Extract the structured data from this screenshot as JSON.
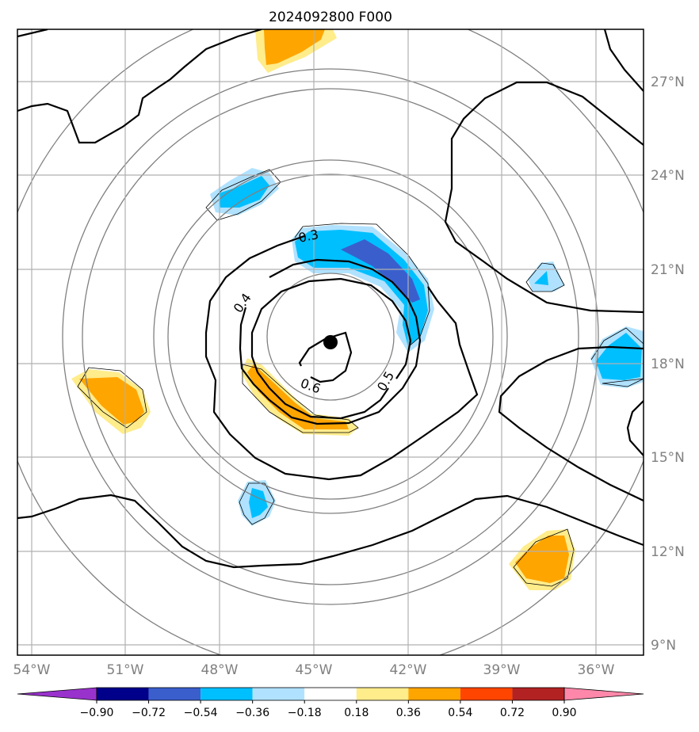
{
  "title": "2024092800 F000",
  "map": {
    "lon_ticks": [
      "54°W",
      "51°W",
      "48°W",
      "45°W",
      "42°W",
      "39°W",
      "36°W"
    ],
    "lat_ticks": [
      "27°N",
      "24°N",
      "21°N",
      "18°N",
      "15°N",
      "12°N",
      "9°N"
    ],
    "center_marker": "storm-center",
    "gridlines": true
  },
  "contours": {
    "labels": [
      "0.3",
      "0.4",
      "0.5",
      "0.6"
    ]
  },
  "colorbar": {
    "tick_labels": [
      "−0.90",
      "−0.72",
      "−0.54",
      "−0.36",
      "−0.18",
      "0.18",
      "0.36",
      "0.54",
      "0.72",
      "0.90"
    ],
    "colors": [
      "#9932cc",
      "#00008b",
      "#3a5fcd",
      "#00bfff",
      "#b0e2ff",
      "#ffffff",
      "#ffec8b",
      "#ffa500",
      "#ff4500",
      "#b22222",
      "#ff88aa"
    ]
  }
}
